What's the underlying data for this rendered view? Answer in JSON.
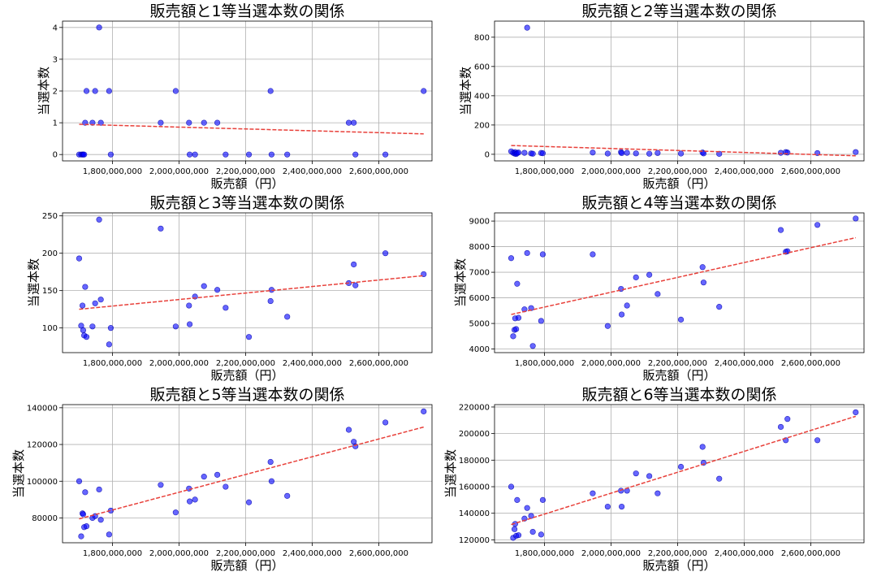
{
  "figure": {
    "colors": {
      "point": "#0000ff",
      "trend": "#e8403a",
      "grid": "#b0b0b0"
    }
  },
  "chart_data": [
    {
      "type": "scatter",
      "title": "販売額と1等当選本数の関係",
      "xlabel": "販売額（円）",
      "ylabel": "当選本数",
      "xlim": [
        1650000000,
        2760000000
      ],
      "ylim": [
        -0.2,
        4.2
      ],
      "xticks": [
        "1,800,000,000",
        "2,000,000,000",
        "2,200,000,000",
        "2,400,000,000",
        "2,600,000,000"
      ],
      "xtick_values": [
        1800000000,
        2000000000,
        2200000000,
        2400000000,
        2600000000
      ],
      "yticks": [
        "0",
        "1",
        "2",
        "3",
        "4"
      ],
      "ytick_values": [
        0,
        1,
        2,
        3,
        4
      ],
      "grid": true,
      "points": [
        [
          1700000000,
          0
        ],
        [
          1706000000,
          0
        ],
        [
          1710000000,
          0
        ],
        [
          1712000000,
          0
        ],
        [
          1715000000,
          0
        ],
        [
          1718000000,
          1
        ],
        [
          1722000000,
          2
        ],
        [
          1740000000,
          1
        ],
        [
          1748000000,
          2
        ],
        [
          1760000000,
          4
        ],
        [
          1765000000,
          1
        ],
        [
          1790000000,
          2
        ],
        [
          1795000000,
          0
        ],
        [
          1945000000,
          1
        ],
        [
          1990000000,
          2
        ],
        [
          2030000000,
          1
        ],
        [
          2032000000,
          0
        ],
        [
          2048000000,
          0
        ],
        [
          2075000000,
          1
        ],
        [
          2115000000,
          1
        ],
        [
          2140000000,
          0
        ],
        [
          2210000000,
          0
        ],
        [
          2275000000,
          2
        ],
        [
          2278000000,
          0
        ],
        [
          2325000000,
          0
        ],
        [
          2510000000,
          1
        ],
        [
          2525000000,
          1
        ],
        [
          2530000000,
          0
        ],
        [
          2620000000,
          0
        ],
        [
          2735000000,
          2
        ]
      ],
      "trend": [
        [
          1700000000,
          0.95
        ],
        [
          2735000000,
          0.65
        ]
      ]
    },
    {
      "type": "scatter",
      "title": "販売額と2等当選本数の関係",
      "xlabel": "販売額（円）",
      "ylabel": "当選本数",
      "xlim": [
        1650000000,
        2760000000
      ],
      "ylim": [
        -45,
        910
      ],
      "xticks": [
        "1,800,000,000",
        "2,000,000,000",
        "2,200,000,000",
        "2,400,000,000",
        "2,600,000,000"
      ],
      "xtick_values": [
        1800000000,
        2000000000,
        2200000000,
        2400000000,
        2600000000
      ],
      "yticks": [
        "0",
        "200",
        "400",
        "600",
        "800"
      ],
      "ytick_values": [
        0,
        200,
        400,
        600,
        800
      ],
      "grid": true,
      "points": [
        [
          1700000000,
          20
        ],
        [
          1706000000,
          10
        ],
        [
          1710000000,
          5
        ],
        [
          1712000000,
          15
        ],
        [
          1715000000,
          2
        ],
        [
          1718000000,
          8
        ],
        [
          1722000000,
          12
        ],
        [
          1740000000,
          10
        ],
        [
          1748000000,
          865
        ],
        [
          1760000000,
          6
        ],
        [
          1765000000,
          4
        ],
        [
          1790000000,
          9
        ],
        [
          1795000000,
          7
        ],
        [
          1945000000,
          12
        ],
        [
          1990000000,
          5
        ],
        [
          2030000000,
          15
        ],
        [
          2032000000,
          8
        ],
        [
          2048000000,
          10
        ],
        [
          2075000000,
          6
        ],
        [
          2115000000,
          4
        ],
        [
          2140000000,
          9
        ],
        [
          2210000000,
          5
        ],
        [
          2275000000,
          12
        ],
        [
          2278000000,
          6
        ],
        [
          2325000000,
          3
        ],
        [
          2510000000,
          10
        ],
        [
          2525000000,
          15
        ],
        [
          2530000000,
          12
        ],
        [
          2620000000,
          8
        ],
        [
          2735000000,
          15
        ]
      ],
      "trend": [
        [
          1700000000,
          60
        ],
        [
          2735000000,
          -10
        ]
      ]
    },
    {
      "type": "scatter",
      "title": "販売額と3等当選本数の関係",
      "xlabel": "販売額（円）",
      "ylabel": "当選本数",
      "xlim": [
        1650000000,
        2760000000
      ],
      "ylim": [
        67,
        254
      ],
      "xticks": [
        "1,800,000,000",
        "2,000,000,000",
        "2,200,000,000",
        "2,400,000,000",
        "2,600,000,000"
      ],
      "xtick_values": [
        1800000000,
        2000000000,
        2200000000,
        2400000000,
        2600000000
      ],
      "yticks": [
        "100",
        "150",
        "200",
        "250"
      ],
      "ytick_values": [
        100,
        150,
        200,
        250
      ],
      "grid": true,
      "points": [
        [
          1700000000,
          193
        ],
        [
          1706000000,
          103
        ],
        [
          1710000000,
          130
        ],
        [
          1712000000,
          97
        ],
        [
          1715000000,
          90
        ],
        [
          1718000000,
          155
        ],
        [
          1722000000,
          88
        ],
        [
          1740000000,
          102
        ],
        [
          1748000000,
          133
        ],
        [
          1760000000,
          245
        ],
        [
          1765000000,
          138
        ],
        [
          1790000000,
          78
        ],
        [
          1795000000,
          100
        ],
        [
          1945000000,
          233
        ],
        [
          1990000000,
          102
        ],
        [
          2030000000,
          130
        ],
        [
          2032000000,
          105
        ],
        [
          2048000000,
          142
        ],
        [
          2075000000,
          156
        ],
        [
          2115000000,
          151
        ],
        [
          2140000000,
          127
        ],
        [
          2210000000,
          88
        ],
        [
          2275000000,
          136
        ],
        [
          2278000000,
          151
        ],
        [
          2325000000,
          115
        ],
        [
          2510000000,
          160
        ],
        [
          2525000000,
          185
        ],
        [
          2530000000,
          157
        ],
        [
          2620000000,
          200
        ],
        [
          2735000000,
          172
        ]
      ],
      "trend": [
        [
          1700000000,
          125
        ],
        [
          2735000000,
          170
        ]
      ]
    },
    {
      "type": "scatter",
      "title": "販売額と4等当選本数の関係",
      "xlabel": "販売額（円）",
      "ylabel": "当選本数",
      "xlim": [
        1650000000,
        2760000000
      ],
      "ylim": [
        3860,
        9320
      ],
      "xticks": [
        "1,800,000,000",
        "2,000,000,000",
        "2,200,000,000",
        "2,400,000,000",
        "2,600,000,000"
      ],
      "xtick_values": [
        1800000000,
        2000000000,
        2200000000,
        2400000000,
        2600000000
      ],
      "yticks": [
        "4000",
        "5000",
        "6000",
        "7000",
        "8000",
        "9000"
      ],
      "ytick_values": [
        4000,
        5000,
        6000,
        7000,
        8000,
        9000
      ],
      "grid": true,
      "points": [
        [
          1700000000,
          7550
        ],
        [
          1706000000,
          4500
        ],
        [
          1710000000,
          4750
        ],
        [
          1712000000,
          5200
        ],
        [
          1715000000,
          4780
        ],
        [
          1718000000,
          6550
        ],
        [
          1722000000,
          5220
        ],
        [
          1740000000,
          5550
        ],
        [
          1748000000,
          7750
        ],
        [
          1760000000,
          5600
        ],
        [
          1765000000,
          4120
        ],
        [
          1790000000,
          5100
        ],
        [
          1795000000,
          7700
        ],
        [
          1945000000,
          7700
        ],
        [
          1990000000,
          4900
        ],
        [
          2030000000,
          6350
        ],
        [
          2032000000,
          5350
        ],
        [
          2048000000,
          5700
        ],
        [
          2075000000,
          6800
        ],
        [
          2115000000,
          6900
        ],
        [
          2140000000,
          6150
        ],
        [
          2210000000,
          5150
        ],
        [
          2275000000,
          7200
        ],
        [
          2278000000,
          6600
        ],
        [
          2325000000,
          5650
        ],
        [
          2510000000,
          8650
        ],
        [
          2525000000,
          7800
        ],
        [
          2530000000,
          7820
        ],
        [
          2620000000,
          8850
        ],
        [
          2735000000,
          9100
        ]
      ],
      "trend": [
        [
          1700000000,
          5350
        ],
        [
          2735000000,
          8350
        ]
      ]
    },
    {
      "type": "scatter",
      "title": "販売額と5等当選本数の関係",
      "xlabel": "販売額（円）",
      "ylabel": "当選本数",
      "xlim": [
        1650000000,
        2760000000
      ],
      "ylim": [
        66500,
        141700
      ],
      "xticks": [
        "1,800,000,000",
        "2,000,000,000",
        "2,200,000,000",
        "2,400,000,000",
        "2,600,000,000"
      ],
      "xtick_values": [
        1800000000,
        2000000000,
        2200000000,
        2400000000,
        2600000000
      ],
      "yticks": [
        "80000",
        "100000",
        "120000",
        "140000"
      ],
      "ytick_values": [
        80000,
        100000,
        120000,
        140000
      ],
      "grid": true,
      "points": [
        [
          1700000000,
          100000
        ],
        [
          1706000000,
          70000
        ],
        [
          1710000000,
          82500
        ],
        [
          1712000000,
          82000
        ],
        [
          1715000000,
          75000
        ],
        [
          1718000000,
          94000
        ],
        [
          1722000000,
          75500
        ],
        [
          1740000000,
          80000
        ],
        [
          1748000000,
          81000
        ],
        [
          1760000000,
          95500
        ],
        [
          1765000000,
          79000
        ],
        [
          1790000000,
          71000
        ],
        [
          1795000000,
          84000
        ],
        [
          1945000000,
          98000
        ],
        [
          1990000000,
          83000
        ],
        [
          2030000000,
          96000
        ],
        [
          2032000000,
          89000
        ],
        [
          2048000000,
          90000
        ],
        [
          2075000000,
          102500
        ],
        [
          2115000000,
          103500
        ],
        [
          2140000000,
          97000
        ],
        [
          2210000000,
          88500
        ],
        [
          2275000000,
          110500
        ],
        [
          2278000000,
          100000
        ],
        [
          2325000000,
          92000
        ],
        [
          2510000000,
          128000
        ],
        [
          2525000000,
          121500
        ],
        [
          2530000000,
          119000
        ],
        [
          2620000000,
          132000
        ],
        [
          2735000000,
          138000
        ]
      ],
      "trend": [
        [
          1700000000,
          79500
        ],
        [
          2735000000,
          129500
        ]
      ]
    },
    {
      "type": "scatter",
      "title": "販売額と6等当選本数の関係",
      "xlabel": "販売額（円）",
      "ylabel": "当選本数",
      "xlim": [
        1650000000,
        2760000000
      ],
      "ylim": [
        117800,
        221800
      ],
      "xticks": [
        "1,800,000,000",
        "2,000,000,000",
        "2,200,000,000",
        "2,400,000,000",
        "2,600,000,000"
      ],
      "xtick_values": [
        1800000000,
        2000000000,
        2200000000,
        2400000000,
        2600000000
      ],
      "yticks": [
        "120000",
        "140000",
        "160000",
        "180000",
        "200000",
        "220000"
      ],
      "ytick_values": [
        120000,
        140000,
        160000,
        180000,
        200000,
        220000
      ],
      "grid": true,
      "points": [
        [
          1700000000,
          160000
        ],
        [
          1706000000,
          121500
        ],
        [
          1710000000,
          128000
        ],
        [
          1712000000,
          132000
        ],
        [
          1715000000,
          123000
        ],
        [
          1718000000,
          150000
        ],
        [
          1722000000,
          123500
        ],
        [
          1740000000,
          136000
        ],
        [
          1748000000,
          144000
        ],
        [
          1760000000,
          138000
        ],
        [
          1765000000,
          126000
        ],
        [
          1790000000,
          124000
        ],
        [
          1795000000,
          150000
        ],
        [
          1945000000,
          155000
        ],
        [
          1990000000,
          145000
        ],
        [
          2030000000,
          157000
        ],
        [
          2032000000,
          145000
        ],
        [
          2048000000,
          157000
        ],
        [
          2075000000,
          170000
        ],
        [
          2115000000,
          168000
        ],
        [
          2140000000,
          155000
        ],
        [
          2210000000,
          175000
        ],
        [
          2275000000,
          190000
        ],
        [
          2278000000,
          178000
        ],
        [
          2325000000,
          166000
        ],
        [
          2510000000,
          205000
        ],
        [
          2525000000,
          195000
        ],
        [
          2530000000,
          211000
        ],
        [
          2620000000,
          195000
        ],
        [
          2735000000,
          216000
        ]
      ],
      "trend": [
        [
          1700000000,
          131500
        ],
        [
          2735000000,
          213000
        ]
      ]
    }
  ]
}
